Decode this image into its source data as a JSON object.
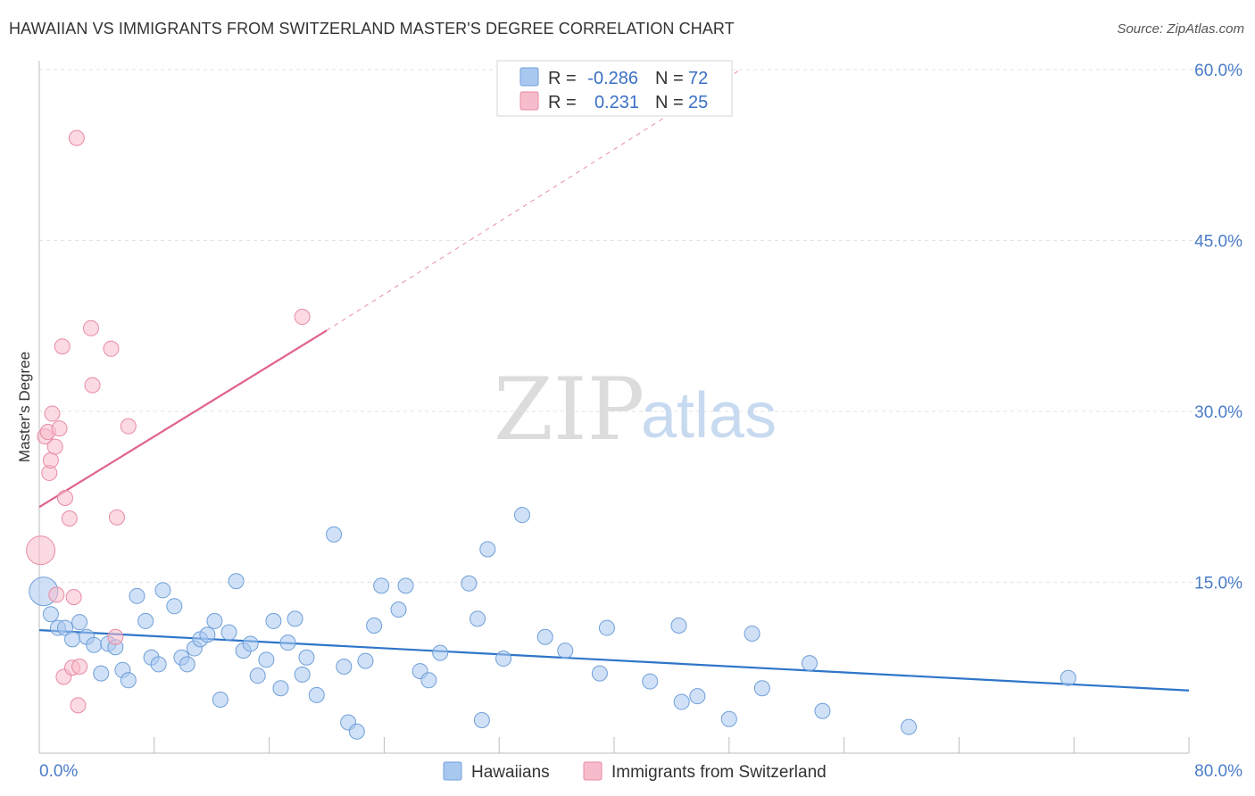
{
  "header": {
    "title": "HAWAIIAN VS IMMIGRANTS FROM SWITZERLAND MASTER'S DEGREE CORRELATION CHART",
    "source": "Source: ZipAtlas.com"
  },
  "watermark": {
    "zip": "ZIP",
    "atlas": "atlas"
  },
  "legend_top": {
    "rows": [
      {
        "r_label": "R =",
        "r_value": "-0.286",
        "n_label": "N =",
        "n_value": "72",
        "color": "#a9c8f0"
      },
      {
        "r_label": "R =",
        "r_value": "0.231",
        "n_label": "N =",
        "n_value": "25",
        "color": "#f7bccb"
      }
    ]
  },
  "legend_bottom": {
    "items": [
      {
        "label": "Hawaiians",
        "color": "#a9c8f0"
      },
      {
        "label": "Immigrants from Switzerland",
        "color": "#f7bccb"
      }
    ]
  },
  "chart_data": {
    "type": "scatter",
    "title": "HAWAIIAN VS IMMIGRANTS FROM SWITZERLAND MASTER'S DEGREE CORRELATION CHART",
    "xlabel": "",
    "ylabel": "Master's Degree",
    "xlim": [
      0,
      80
    ],
    "ylim": [
      0,
      60
    ],
    "x_tick_labels": [
      "0.0%",
      "80.0%"
    ],
    "y_ticks": [
      15,
      30,
      45,
      60
    ],
    "y_tick_labels": [
      "15.0%",
      "30.0%",
      "45.0%",
      "60.0%"
    ],
    "grid": true,
    "legend_position": "top-center",
    "series": [
      {
        "name": "Hawaiians",
        "color": "#a9c8f0",
        "stroke": "#6f9fd8",
        "trend_color": "#2e75c9",
        "trend": {
          "x0": 0,
          "y0": 10.8,
          "x1": 80,
          "y1": 5.5
        },
        "points": [
          [
            0.3,
            14.2
          ],
          [
            0.8,
            12.2
          ],
          [
            1.3,
            11.0
          ],
          [
            1.8,
            11.0
          ],
          [
            2.3,
            10.0
          ],
          [
            2.8,
            11.5
          ],
          [
            3.3,
            10.2
          ],
          [
            3.8,
            9.5
          ],
          [
            4.3,
            7.0
          ],
          [
            4.8,
            9.6
          ],
          [
            5.3,
            9.3
          ],
          [
            5.8,
            7.3
          ],
          [
            6.2,
            6.4
          ],
          [
            6.8,
            13.8
          ],
          [
            7.4,
            11.6
          ],
          [
            7.8,
            8.4
          ],
          [
            8.3,
            7.8
          ],
          [
            8.6,
            14.3
          ],
          [
            9.4,
            12.9
          ],
          [
            9.9,
            8.4
          ],
          [
            10.3,
            7.8
          ],
          [
            10.8,
            9.2
          ],
          [
            11.2,
            10.0
          ],
          [
            11.7,
            10.4
          ],
          [
            12.2,
            11.6
          ],
          [
            12.6,
            4.7
          ],
          [
            13.2,
            10.6
          ],
          [
            13.7,
            15.1
          ],
          [
            14.2,
            9.0
          ],
          [
            14.7,
            9.6
          ],
          [
            15.2,
            6.8
          ],
          [
            15.8,
            8.2
          ],
          [
            16.3,
            11.6
          ],
          [
            16.8,
            5.7
          ],
          [
            17.3,
            9.7
          ],
          [
            17.8,
            11.8
          ],
          [
            18.3,
            6.9
          ],
          [
            18.6,
            8.4
          ],
          [
            19.3,
            5.1
          ],
          [
            20.5,
            19.2
          ],
          [
            21.2,
            7.6
          ],
          [
            21.5,
            2.7
          ],
          [
            22.1,
            1.9
          ],
          [
            22.7,
            8.1
          ],
          [
            23.3,
            11.2
          ],
          [
            23.8,
            14.7
          ],
          [
            25.0,
            12.6
          ],
          [
            25.5,
            14.7
          ],
          [
            26.5,
            7.2
          ],
          [
            27.1,
            6.4
          ],
          [
            27.9,
            8.8
          ],
          [
            29.9,
            14.9
          ],
          [
            30.5,
            11.8
          ],
          [
            30.8,
            2.9
          ],
          [
            31.2,
            17.9
          ],
          [
            32.3,
            8.3
          ],
          [
            33.6,
            20.9
          ],
          [
            35.2,
            10.2
          ],
          [
            36.6,
            9.0
          ],
          [
            39.0,
            7.0
          ],
          [
            39.5,
            11.0
          ],
          [
            42.5,
            6.3
          ],
          [
            44.5,
            11.2
          ],
          [
            44.7,
            4.5
          ],
          [
            45.8,
            5.0
          ],
          [
            48.0,
            3.0
          ],
          [
            49.6,
            10.5
          ],
          [
            50.3,
            5.7
          ],
          [
            53.6,
            7.9
          ],
          [
            54.5,
            3.7
          ],
          [
            60.5,
            2.3
          ],
          [
            71.6,
            6.6
          ]
        ]
      },
      {
        "name": "Immigrants from Switzerland",
        "color": "#f7bccb",
        "stroke": "#e98aa5",
        "trend_color": "#e0628a",
        "trend": {
          "x0": 0,
          "y0": 21.6,
          "x1": 20.0,
          "y1": 37.1,
          "dashed_to_x": 48.8,
          "dashed_to_y": 60.0
        },
        "points": [
          [
            0.1,
            17.8
          ],
          [
            0.4,
            27.8
          ],
          [
            0.6,
            28.2
          ],
          [
            0.7,
            24.6
          ],
          [
            0.8,
            25.7
          ],
          [
            0.9,
            29.8
          ],
          [
            1.1,
            26.9
          ],
          [
            1.2,
            13.9
          ],
          [
            1.4,
            28.5
          ],
          [
            1.6,
            35.7
          ],
          [
            1.7,
            6.7
          ],
          [
            1.8,
            22.4
          ],
          [
            2.1,
            20.6
          ],
          [
            2.3,
            7.5
          ],
          [
            2.4,
            13.7
          ],
          [
            2.6,
            54.0
          ],
          [
            2.7,
            4.2
          ],
          [
            2.8,
            7.6
          ],
          [
            3.6,
            37.3
          ],
          [
            3.7,
            32.3
          ],
          [
            5.0,
            35.5
          ],
          [
            5.3,
            10.2
          ],
          [
            5.4,
            20.7
          ],
          [
            6.2,
            28.7
          ],
          [
            18.3,
            38.3
          ]
        ]
      }
    ]
  }
}
